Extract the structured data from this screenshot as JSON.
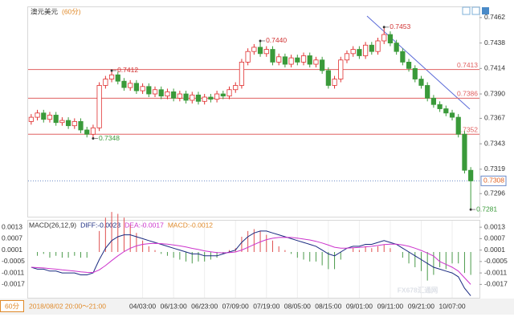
{
  "chart_data": {
    "type": "candlestick",
    "title": "澳元美元",
    "subtitle": "(60分)",
    "period_button": "60分",
    "cursor_time": "2018/08/02 20:00～21:00",
    "watermark": "FX678汇通网",
    "up_color": "#e03030",
    "down_color": "#3a9a3a",
    "categories": [
      null,
      null,
      null,
      null,
      null,
      null,
      null,
      null,
      null,
      null,
      null,
      null,
      null,
      null,
      null,
      null,
      null,
      null,
      "04/03:00",
      null,
      null,
      null,
      null,
      "06/13:00",
      null,
      null,
      null,
      null,
      "06/23:00",
      null,
      null,
      null,
      null,
      "07/09:00",
      null,
      null,
      null,
      null,
      "07/19:00",
      null,
      null,
      null,
      null,
      "08/05:00",
      null,
      null,
      null,
      null,
      "08/15:00",
      null,
      null,
      null,
      null,
      "09/01:00",
      null,
      null,
      null,
      null,
      "09/11:00",
      null,
      null,
      null,
      null,
      "09/21:00",
      null,
      null,
      null,
      null,
      "10/07:00",
      null,
      null,
      null
    ],
    "candles": [
      [
        0.7364,
        0.7371,
        0.7361,
        0.7368
      ],
      [
        0.7368,
        0.7375,
        0.7365,
        0.7372
      ],
      [
        0.7372,
        0.7375,
        0.7363,
        0.7366
      ],
      [
        0.7366,
        0.7373,
        0.7363,
        0.737
      ],
      [
        0.737,
        0.7373,
        0.736,
        0.7363
      ],
      [
        0.7363,
        0.7368,
        0.736,
        0.7365
      ],
      [
        0.7365,
        0.7368,
        0.7357,
        0.736
      ],
      [
        0.736,
        0.7367,
        0.7357,
        0.7364
      ],
      [
        0.7364,
        0.7367,
        0.7353,
        0.7356
      ],
      [
        0.7356,
        0.7359,
        0.7349,
        0.7352
      ],
      [
        0.7352,
        0.7361,
        0.7348,
        0.7358
      ],
      [
        0.7358,
        0.7401,
        0.7355,
        0.7398
      ],
      [
        0.7398,
        0.7407,
        0.7395,
        0.7404
      ],
      [
        0.7404,
        0.7412,
        0.7401,
        0.7408
      ],
      [
        0.7408,
        0.7411,
        0.7399,
        0.7402
      ],
      [
        0.7402,
        0.7405,
        0.7393,
        0.7396
      ],
      [
        0.7396,
        0.7403,
        0.7393,
        0.74
      ],
      [
        0.74,
        0.7403,
        0.739,
        0.7393
      ],
      [
        0.7393,
        0.74,
        0.739,
        0.7397
      ],
      [
        0.7397,
        0.74,
        0.7387,
        0.739
      ],
      [
        0.739,
        0.7397,
        0.7387,
        0.7394
      ],
      [
        0.7394,
        0.7397,
        0.7385,
        0.7388
      ],
      [
        0.7388,
        0.7395,
        0.7385,
        0.7392
      ],
      [
        0.7392,
        0.7395,
        0.7383,
        0.7386
      ],
      [
        0.7386,
        0.7393,
        0.7383,
        0.739
      ],
      [
        0.739,
        0.7393,
        0.7381,
        0.7384
      ],
      [
        0.7384,
        0.7392,
        0.7381,
        0.7389
      ],
      [
        0.7389,
        0.7392,
        0.738,
        0.7383
      ],
      [
        0.7383,
        0.739,
        0.738,
        0.7387
      ],
      [
        0.7387,
        0.739,
        0.7382,
        0.7385
      ],
      [
        0.7385,
        0.7393,
        0.7382,
        0.739
      ],
      [
        0.739,
        0.7393,
        0.7385,
        0.7388
      ],
      [
        0.7388,
        0.7397,
        0.7385,
        0.7394
      ],
      [
        0.7394,
        0.7401,
        0.7391,
        0.7398
      ],
      [
        0.7398,
        0.7423,
        0.7395,
        0.742
      ],
      [
        0.742,
        0.7433,
        0.7417,
        0.743
      ],
      [
        0.743,
        0.7437,
        0.7427,
        0.7434
      ],
      [
        0.7434,
        0.744,
        0.7425,
        0.7428
      ],
      [
        0.7428,
        0.7435,
        0.7425,
        0.7432
      ],
      [
        0.7432,
        0.7435,
        0.7417,
        0.742
      ],
      [
        0.742,
        0.7428,
        0.7417,
        0.7425
      ],
      [
        0.7425,
        0.7428,
        0.7415,
        0.7418
      ],
      [
        0.7418,
        0.7427,
        0.7415,
        0.7424
      ],
      [
        0.7424,
        0.7427,
        0.7417,
        0.742
      ],
      [
        0.742,
        0.7429,
        0.7417,
        0.7426
      ],
      [
        0.7426,
        0.7429,
        0.7415,
        0.7418
      ],
      [
        0.7418,
        0.7425,
        0.7415,
        0.7422
      ],
      [
        0.7422,
        0.7425,
        0.7409,
        0.7412
      ],
      [
        0.7412,
        0.7415,
        0.7395,
        0.7398
      ],
      [
        0.7398,
        0.7407,
        0.7395,
        0.7404
      ],
      [
        0.7404,
        0.7425,
        0.7401,
        0.7422
      ],
      [
        0.7422,
        0.7431,
        0.7419,
        0.7428
      ],
      [
        0.7428,
        0.7435,
        0.7425,
        0.7432
      ],
      [
        0.7432,
        0.7435,
        0.7423,
        0.7426
      ],
      [
        0.7426,
        0.7439,
        0.7423,
        0.7436
      ],
      [
        0.7436,
        0.7439,
        0.7427,
        0.743
      ],
      [
        0.743,
        0.7443,
        0.7427,
        0.744
      ],
      [
        0.744,
        0.7453,
        0.7437,
        0.7446
      ],
      [
        0.7446,
        0.7449,
        0.7435,
        0.7438
      ],
      [
        0.7438,
        0.7441,
        0.7427,
        0.743
      ],
      [
        0.743,
        0.7433,
        0.7417,
        0.742
      ],
      [
        0.742,
        0.7423,
        0.7411,
        0.7414
      ],
      [
        0.7414,
        0.7417,
        0.7401,
        0.7404
      ],
      [
        0.7404,
        0.7407,
        0.7395,
        0.7398
      ],
      [
        0.7398,
        0.7401,
        0.7383,
        0.7386
      ],
      [
        0.7386,
        0.7389,
        0.7377,
        0.738
      ],
      [
        0.738,
        0.7383,
        0.7373,
        0.7376
      ],
      [
        0.7376,
        0.7379,
        0.7369,
        0.7372
      ],
      [
        0.7372,
        0.7375,
        0.7365,
        0.7368
      ],
      [
        0.7368,
        0.7371,
        0.7349,
        0.7352
      ],
      [
        0.7352,
        0.7355,
        0.7315,
        0.7318
      ],
      [
        0.7318,
        0.7321,
        0.7281,
        0.7308
      ]
    ],
    "ylim": [
      0.7275,
      0.7471
    ],
    "yticks": [
      0.7462,
      0.7438,
      0.7414,
      {
        "value": 0.739,
        "label": "0.7390"
      },
      0.7367,
      0.7343,
      0.7319,
      0.7296
    ],
    "levels": [
      {
        "value": 0.7413,
        "color": "#e06060"
      },
      {
        "value": 0.7386,
        "color": "#e06060"
      },
      {
        "value": 0.7352,
        "color": "#e06060"
      }
    ],
    "current_price": 0.7308,
    "extremes": [
      {
        "index": 13,
        "value": 0.7412,
        "kind": "high"
      },
      {
        "index": 37,
        "value": 0.744,
        "label": "0.7440",
        "kind": "high"
      },
      {
        "index": 57,
        "value": 0.7453,
        "kind": "high"
      },
      {
        "index": 10,
        "value": 0.7348,
        "kind": "low"
      },
      {
        "index": 71,
        "value": 0.7281,
        "kind": "low"
      }
    ],
    "macd": {
      "legend": [
        "MACD(26,12,9)",
        "DIFF:-0.0023",
        "DEA:-0.0017",
        "MACD:-0.0012"
      ],
      "ylim": [
        -0.0024,
        0.0016
      ],
      "yticks": [
        0.0013,
        0.0007,
        0.0001,
        -0.0005,
        -0.0011,
        -0.0017
      ],
      "series": [
        {
          "name": "DIFF",
          "color": "#1a2a80",
          "values": [
            -0.0008,
            -0.0009,
            -0.0009,
            -0.001,
            -0.001,
            -0.0011,
            -0.0011,
            -0.0011,
            -0.0012,
            -0.0012,
            -0.0011,
            -0.0004,
            0.0002,
            0.0006,
            0.0008,
            0.0009,
            0.0009,
            0.0008,
            0.0007,
            0.0006,
            0.0005,
            0.0004,
            0.0003,
            0.0002,
            0.0001,
            0,
            -0.0001,
            -0.0001,
            -0.0002,
            -0.0002,
            -0.0002,
            -0.0001,
            0,
            0.0001,
            0.0005,
            0.0008,
            0.001,
            0.0011,
            0.0011,
            0.001,
            0.0009,
            0.0008,
            0.0007,
            0.0006,
            0.0005,
            0.0004,
            0.0003,
            0.0001,
            -0.0001,
            -0.0002,
            0,
            0.0002,
            0.0003,
            0.0003,
            0.0004,
            0.0004,
            0.0005,
            0.0006,
            0.0005,
            0.0004,
            0.0002,
            0,
            -0.0002,
            -0.0004,
            -0.0006,
            -0.0008,
            -0.0009,
            -0.001,
            -0.0011,
            -0.0013,
            -0.0019,
            -0.0023
          ]
        },
        {
          "name": "DEA",
          "color": "#cc33cc",
          "values": [
            -0.0008,
            -0.00082,
            -0.00084,
            -0.00087,
            -0.0009,
            -0.00094,
            -0.00097,
            -0.001,
            -0.00104,
            -0.00107,
            -0.00108,
            -0.00094,
            -0.00071,
            -0.00045,
            -0.0002,
            2e-05,
            0.0002,
            0.00032,
            0.0004,
            0.00044,
            0.00045,
            0.00044,
            0.00041,
            0.00037,
            0.00032,
            0.00026,
            0.00019,
            0.00013,
            6e-05,
            1e-05,
            -3e-05,
            -4e-05,
            -3e-05,
            0,
            0.0001,
            0.00024,
            0.00039,
            0.00053,
            0.00065,
            0.00072,
            0.00076,
            0.00077,
            0.00076,
            0.00073,
            0.00068,
            0.00063,
            0.00056,
            0.00047,
            0.00036,
            0.00025,
            0.0002,
            0.0002,
            0.00022,
            0.00024,
            0.00027,
            0.0003,
            0.00034,
            0.00039,
            0.00041,
            0.00041,
            0.00037,
            0.0003,
            0.0002,
            8e-05,
            -6e-05,
            -0.00021,
            -0.0005,
            -0.00065,
            -0.0008,
            -0.001,
            -0.00135,
            -0.0017
          ]
        }
      ],
      "histogram": [
        0,
        -0.0002,
        -0.0001,
        -0.0003,
        -0.0002,
        -0.0003,
        -0.0003,
        -0.0002,
        -0.0003,
        -0.0003,
        0,
        0.0011,
        0.0018,
        0.0021,
        0.002,
        0.0018,
        0.0014,
        0.001,
        0.0006,
        0.0003,
        0.0001,
        -0.0001,
        -0.0002,
        -0.0003,
        -0.0004,
        -0.0005,
        -0.0006,
        -0.0005,
        -0.0005,
        -0.0004,
        -0.0003,
        -0.0001,
        0.0001,
        0.0002,
        0.0008,
        0.0011,
        0.0012,
        0.0011,
        0.0009,
        0.0006,
        0.0003,
        0.0001,
        -0.0001,
        -0.0003,
        -0.0004,
        -0.0005,
        -0.0005,
        -0.0007,
        -0.0009,
        -0.0009,
        -0.0004,
        0,
        0.0002,
        0.0001,
        0.0003,
        0.0002,
        0.0003,
        0.0004,
        0.0002,
        0,
        -0.0003,
        -0.0006,
        -0.0008,
        -0.001,
        -0.0015,
        -0.0012,
        -0.0008,
        -0.0009,
        -0.0006,
        -0.0006,
        -0.0011,
        -0.0012
      ]
    }
  }
}
